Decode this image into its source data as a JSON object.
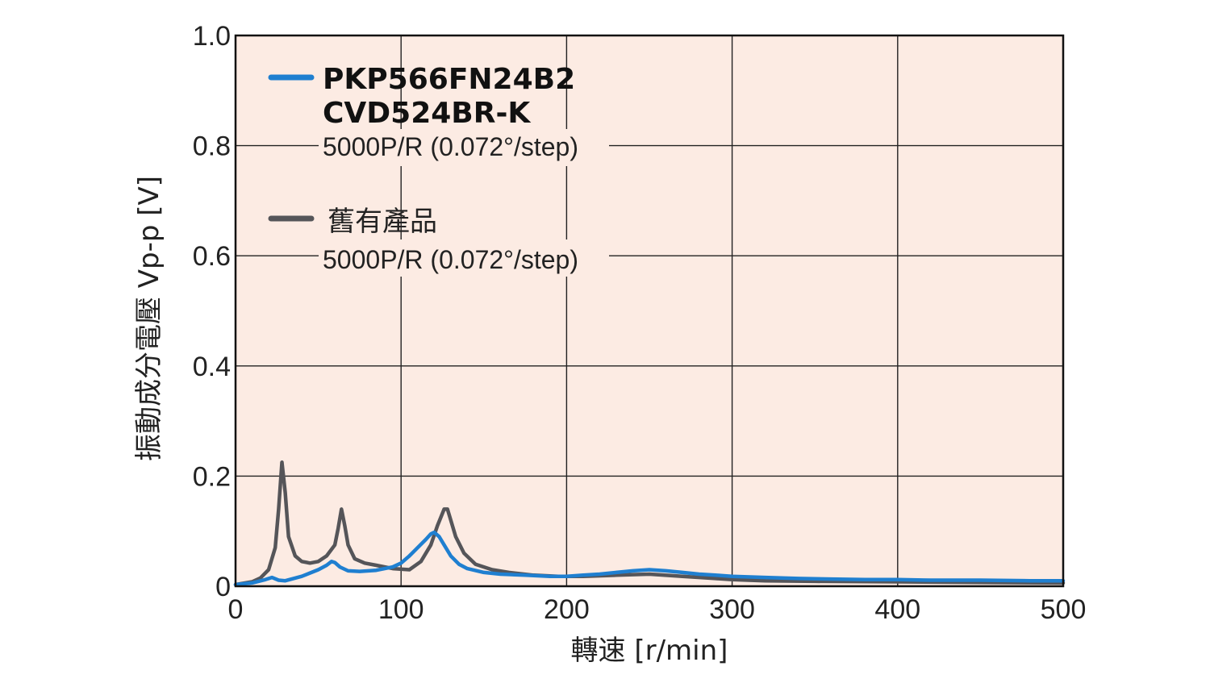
{
  "chart_data": {
    "type": "line",
    "xlabel": "轉速 [r/min]",
    "ylabel": "振動成分電壓 Vp-p [V]",
    "xlim": [
      0,
      500
    ],
    "ylim": [
      0,
      1.0
    ],
    "x_ticks": [
      0,
      100,
      200,
      300,
      400,
      500
    ],
    "y_ticks": [
      0,
      0.2,
      0.4,
      0.6,
      0.8,
      1.0
    ],
    "x_tick_labels": [
      "0",
      "100",
      "200",
      "300",
      "400",
      "500"
    ],
    "y_tick_labels": [
      "0",
      "0.2",
      "0.4",
      "0.6",
      "0.8",
      "1.0"
    ],
    "grid": true,
    "background": "#fcebe3",
    "legend_position": "top-left",
    "series": [
      {
        "name": "PKP566FN24B2 CVD524BR-K",
        "name_lines": [
          "PKP566FN24B2",
          "CVD524BR-K"
        ],
        "subtitle": "5000P/R (0.072°/step)",
        "color": "#1f7fd0",
        "x": [
          0,
          10,
          18,
          22,
          26,
          30,
          40,
          50,
          55,
          58,
          60,
          63,
          68,
          75,
          85,
          95,
          100,
          105,
          110,
          115,
          118,
          120,
          123,
          126,
          130,
          135,
          140,
          150,
          160,
          175,
          190,
          200,
          210,
          220,
          230,
          240,
          250,
          260,
          270,
          280,
          290,
          300,
          320,
          340,
          360,
          380,
          400,
          420,
          450,
          480,
          500
        ],
        "y": [
          0.003,
          0.006,
          0.012,
          0.016,
          0.011,
          0.01,
          0.018,
          0.03,
          0.038,
          0.045,
          0.043,
          0.035,
          0.028,
          0.027,
          0.029,
          0.035,
          0.042,
          0.055,
          0.07,
          0.085,
          0.095,
          0.098,
          0.09,
          0.075,
          0.055,
          0.04,
          0.032,
          0.025,
          0.022,
          0.02,
          0.018,
          0.018,
          0.02,
          0.022,
          0.025,
          0.028,
          0.03,
          0.028,
          0.025,
          0.022,
          0.02,
          0.018,
          0.016,
          0.014,
          0.013,
          0.012,
          0.012,
          0.011,
          0.011,
          0.01,
          0.01
        ]
      },
      {
        "name": "舊有產品",
        "subtitle": "5000P/R (0.072°/step)",
        "color": "#555559",
        "x": [
          0,
          10,
          15,
          20,
          24,
          26,
          28,
          30,
          32,
          36,
          40,
          45,
          50,
          55,
          60,
          62,
          64,
          66,
          68,
          72,
          78,
          85,
          95,
          105,
          112,
          118,
          122,
          126,
          128,
          130,
          133,
          138,
          145,
          155,
          165,
          180,
          195,
          210,
          230,
          250,
          270,
          290,
          300,
          320,
          350,
          400,
          450,
          500
        ],
        "y": [
          0.003,
          0.008,
          0.015,
          0.03,
          0.07,
          0.14,
          0.225,
          0.17,
          0.09,
          0.055,
          0.045,
          0.042,
          0.045,
          0.055,
          0.075,
          0.105,
          0.14,
          0.11,
          0.075,
          0.05,
          0.042,
          0.038,
          0.032,
          0.03,
          0.045,
          0.075,
          0.11,
          0.14,
          0.14,
          0.12,
          0.09,
          0.06,
          0.04,
          0.03,
          0.025,
          0.02,
          0.018,
          0.018,
          0.02,
          0.022,
          0.018,
          0.014,
          0.012,
          0.01,
          0.009,
          0.008,
          0.007,
          0.006
        ]
      }
    ]
  }
}
